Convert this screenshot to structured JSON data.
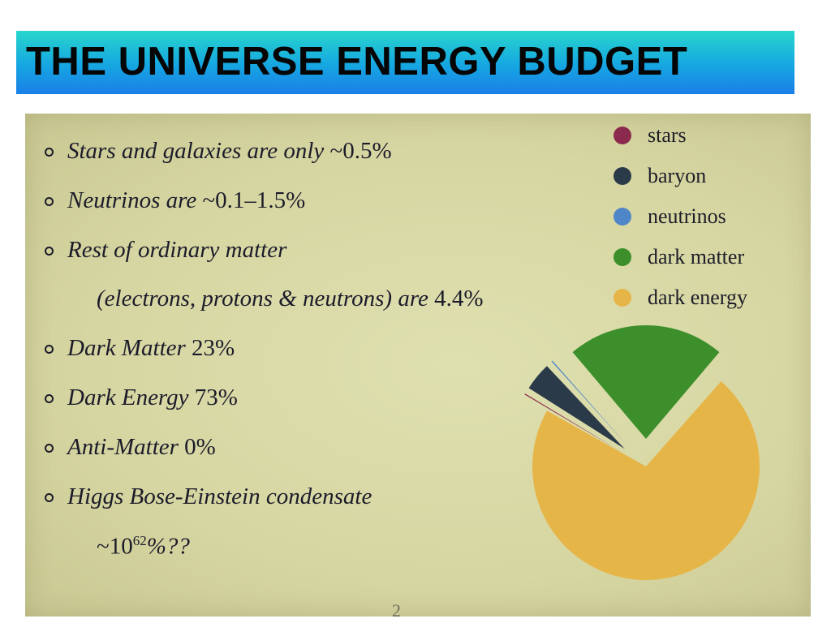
{
  "title": "THE UNIVERSE ENERGY BUDGET",
  "bullets": {
    "stars": "Stars and galaxies are only ",
    "stars_val": "~0.5%",
    "neutrinos": "Neutrinos are ",
    "neutrinos_val": "~0.1–1.5%",
    "rest": "Rest of ordinary matter",
    "rest_cont": "(electrons, protons & neutrons) are ",
    "rest_val": "4.4%",
    "dm": "Dark Matter ",
    "dm_val": "23%",
    "de": "Dark Energy ",
    "de_val": "73%",
    "am": "Anti-Matter ",
    "am_val": "0%",
    "higgs": "Higgs Bose-Einstein condensate",
    "higgs_pre": "~10",
    "higgs_exp": "62",
    "higgs_post": "%??"
  },
  "page_number": "2",
  "chart_data": {
    "type": "pie",
    "categories": [
      "stars",
      "baryon",
      "neutrinos",
      "dark matter",
      "dark energy"
    ],
    "values": [
      0.5,
      4.4,
      0.5,
      23,
      73
    ],
    "colors": [
      "#8b2a4e",
      "#2a3a48",
      "#4f86c8",
      "#3d8f2b",
      "#e6b548"
    ],
    "legend_position": "top-right",
    "title": "",
    "exploded": true
  }
}
